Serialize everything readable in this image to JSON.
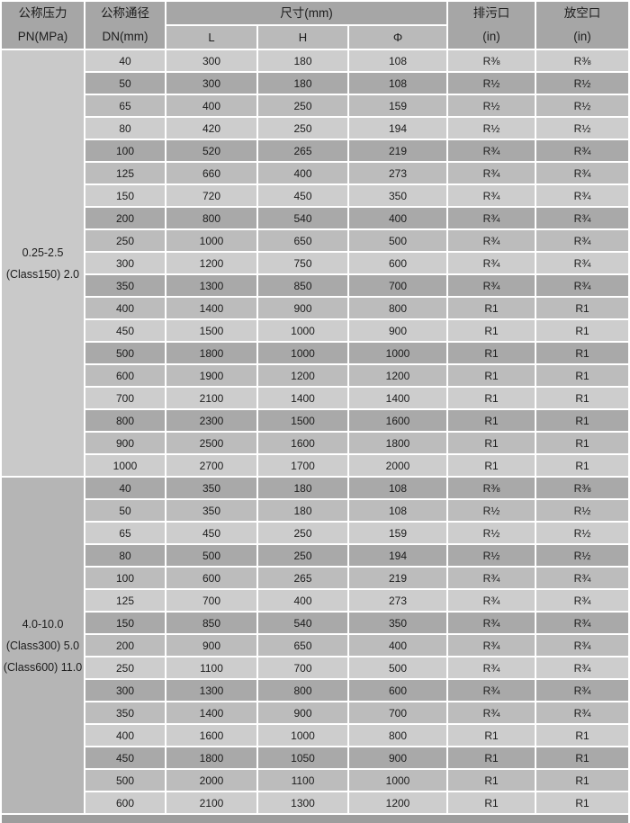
{
  "header": {
    "pressure": [
      "公称压力",
      "PN(MPa)"
    ],
    "dn": [
      "公称通径",
      "DN(mm)"
    ],
    "dims_group": "尺寸(mm)",
    "dims_sub": [
      "L",
      "H",
      "Φ"
    ],
    "drain": [
      "排污口",
      "(in)"
    ],
    "vent": [
      "放空口",
      "(in)"
    ]
  },
  "sections": [
    {
      "pressure_label": [
        "0.25-2.5",
        "(Class150) 2.0"
      ],
      "rows": [
        [
          "40",
          "300",
          "180",
          "108",
          "R⅜",
          "R⅜"
        ],
        [
          "50",
          "300",
          "180",
          "108",
          "R½",
          "R½"
        ],
        [
          "65",
          "400",
          "250",
          "159",
          "R½",
          "R½"
        ],
        [
          "80",
          "420",
          "250",
          "194",
          "R½",
          "R½"
        ],
        [
          "100",
          "520",
          "265",
          "219",
          "R¾",
          "R¾"
        ],
        [
          "125",
          "660",
          "400",
          "273",
          "R¾",
          "R¾"
        ],
        [
          "150",
          "720",
          "450",
          "350",
          "R¾",
          "R¾"
        ],
        [
          "200",
          "800",
          "540",
          "400",
          "R¾",
          "R¾"
        ],
        [
          "250",
          "1000",
          "650",
          "500",
          "R¾",
          "R¾"
        ],
        [
          "300",
          "1200",
          "750",
          "600",
          "R¾",
          "R¾"
        ],
        [
          "350",
          "1300",
          "850",
          "700",
          "R¾",
          "R¾"
        ],
        [
          "400",
          "1400",
          "900",
          "800",
          "R1",
          "R1"
        ],
        [
          "450",
          "1500",
          "1000",
          "900",
          "R1",
          "R1"
        ],
        [
          "500",
          "1800",
          "1000",
          "1000",
          "R1",
          "R1"
        ],
        [
          "600",
          "1900",
          "1200",
          "1200",
          "R1",
          "R1"
        ],
        [
          "700",
          "2100",
          "1400",
          "1400",
          "R1",
          "R1"
        ],
        [
          "800",
          "2300",
          "1500",
          "1600",
          "R1",
          "R1"
        ],
        [
          "900",
          "2500",
          "1600",
          "1800",
          "R1",
          "R1"
        ],
        [
          "1000",
          "2700",
          "1700",
          "2000",
          "R1",
          "R1"
        ]
      ]
    },
    {
      "pressure_label": [
        "4.0-10.0",
        "(Class300) 5.0",
        "(Class600) 11.0"
      ],
      "rows": [
        [
          "40",
          "350",
          "180",
          "108",
          "R⅜",
          "R⅜"
        ],
        [
          "50",
          "350",
          "180",
          "108",
          "R½",
          "R½"
        ],
        [
          "65",
          "450",
          "250",
          "159",
          "R½",
          "R½"
        ],
        [
          "80",
          "500",
          "250",
          "194",
          "R½",
          "R½"
        ],
        [
          "100",
          "600",
          "265",
          "219",
          "R¾",
          "R¾"
        ],
        [
          "125",
          "700",
          "400",
          "273",
          "R¾",
          "R¾"
        ],
        [
          "150",
          "850",
          "540",
          "350",
          "R¾",
          "R¾"
        ],
        [
          "200",
          "900",
          "650",
          "400",
          "R¾",
          "R¾"
        ],
        [
          "250",
          "1100",
          "700",
          "500",
          "R¾",
          "R¾"
        ],
        [
          "300",
          "1300",
          "800",
          "600",
          "R¾",
          "R¾"
        ],
        [
          "350",
          "1400",
          "900",
          "700",
          "R¾",
          "R¾"
        ],
        [
          "400",
          "1600",
          "1000",
          "800",
          "R1",
          "R1"
        ],
        [
          "450",
          "1800",
          "1050",
          "900",
          "R1",
          "R1"
        ],
        [
          "500",
          "2000",
          "1100",
          "1000",
          "R1",
          "R1"
        ],
        [
          "600",
          "2100",
          "1300",
          "1200",
          "R1",
          "R1"
        ]
      ]
    }
  ],
  "row_shade_cycle": [
    "row_light",
    "row_dark",
    "row_medium"
  ],
  "colors": {
    "header_bg": "#a6a6a6",
    "subheader_bg": "#bababa",
    "row_light": "#cdcdcd",
    "row_dark": "#a9a9a9",
    "row_medium": "#bcbcbc",
    "section1_bg": "#c9c9c9",
    "section2_bg": "#b5b5b5",
    "bottom_strip": "#9d9d9d",
    "border": "#ffffff",
    "text": "#1c1c1c"
  }
}
